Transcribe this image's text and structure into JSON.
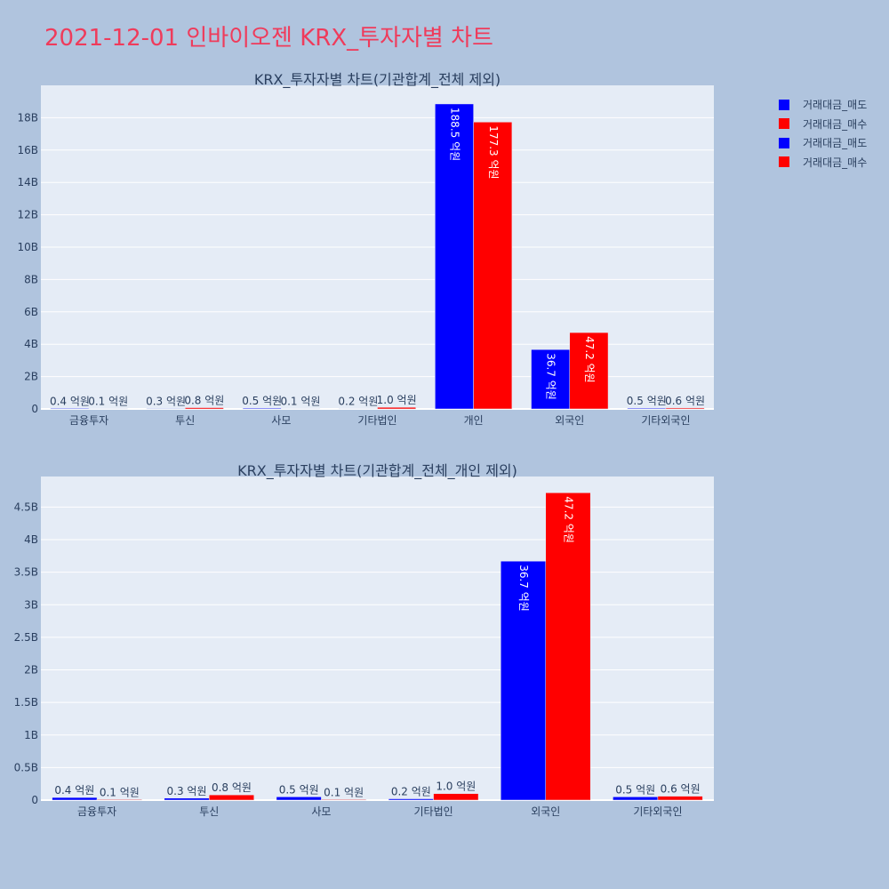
{
  "title": "2021-12-01 인바이오젠 KRX_투자자별 차트",
  "colors": {
    "sell": "#0000ff",
    "buy": "#ff0000",
    "plot_bg": "#e5ecf6",
    "page_bg": "#b0c4de",
    "title": "#ef3b5b"
  },
  "legend": [
    {
      "label": "거래대금_매도",
      "color": "#0000ff"
    },
    {
      "label": "거래대금_매수",
      "color": "#ff0000"
    },
    {
      "label": "거래대금_매도",
      "color": "#0000ff"
    },
    {
      "label": "거래대금_매수",
      "color": "#ff0000"
    }
  ],
  "chart_data": [
    {
      "type": "bar",
      "title": "KRX_투자자별 차트(기관합계_전체 제외)",
      "categories": [
        "금융투자",
        "투신",
        "사모",
        "기타법인",
        "개인",
        "외국인",
        "기타외국인"
      ],
      "series": [
        {
          "name": "거래대금_매도",
          "color": "#0000ff",
          "values": [
            0.04,
            0.03,
            0.05,
            0.02,
            18.85,
            3.67,
            0.05
          ],
          "labels": [
            "0.4 억원",
            "0.3 억원",
            "0.5 억원",
            "0.2 억원",
            "188.5 억원",
            "36.7 억원",
            "0.5 억원"
          ]
        },
        {
          "name": "거래대금_매수",
          "color": "#ff0000",
          "values": [
            0.01,
            0.08,
            0.01,
            0.1,
            17.73,
            4.72,
            0.06
          ],
          "labels": [
            "0.1 억원",
            "0.8 억원",
            "0.1 억원",
            "1.0 억원",
            "177.3 억원",
            "47.2 억원",
            "0.6 억원"
          ]
        }
      ],
      "ylim": [
        0,
        20
      ],
      "yticks": [
        0,
        2,
        4,
        6,
        8,
        10,
        12,
        14,
        16,
        18
      ],
      "ytick_labels": [
        "0",
        "2B",
        "4B",
        "6B",
        "8B",
        "10B",
        "12B",
        "14B",
        "16B",
        "18B"
      ],
      "grid": true
    },
    {
      "type": "bar",
      "title": "KRX_투자자별 차트(기관합계_전체_개인 제외)",
      "categories": [
        "금융투자",
        "투신",
        "사모",
        "기타법인",
        "외국인",
        "기타외국인"
      ],
      "series": [
        {
          "name": "거래대금_매도",
          "color": "#0000ff",
          "values": [
            0.04,
            0.03,
            0.05,
            0.02,
            3.67,
            0.05
          ],
          "labels": [
            "0.4 억원",
            "0.3 억원",
            "0.5 억원",
            "0.2 억원",
            "36.7 억원",
            "0.5 억원"
          ]
        },
        {
          "name": "거래대금_매수",
          "color": "#ff0000",
          "values": [
            0.01,
            0.08,
            0.01,
            0.1,
            4.72,
            0.06
          ],
          "labels": [
            "0.1 억원",
            "0.8 억원",
            "0.1 억원",
            "1.0 억원",
            "47.2 억원",
            "0.6 억원"
          ]
        }
      ],
      "ylim": [
        0,
        4.97
      ],
      "yticks": [
        0,
        0.5,
        1,
        1.5,
        2,
        2.5,
        3,
        3.5,
        4,
        4.5
      ],
      "ytick_labels": [
        "0",
        "0.5B",
        "1B",
        "1.5B",
        "2B",
        "2.5B",
        "3B",
        "3.5B",
        "4B",
        "4.5B"
      ],
      "grid": true
    }
  ]
}
